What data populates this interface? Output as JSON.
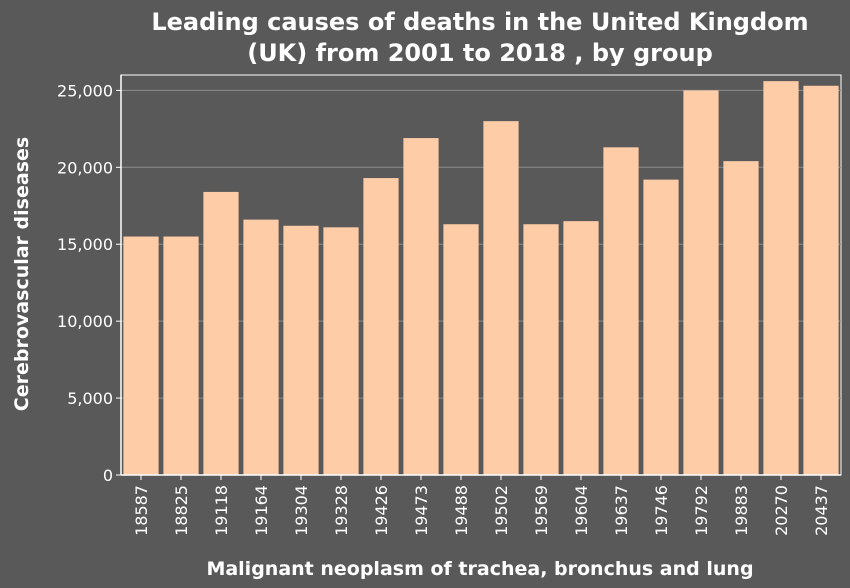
{
  "colors": {
    "background": "#595959",
    "plot_background": "#595959",
    "bar": "#ffcca8",
    "gridline": "#8c8c8c",
    "text": "#ffffff"
  },
  "chart_data": {
    "type": "bar",
    "title_lines": [
      "Leading causes of deaths in the United Kingdom",
      "(UK) from 2001 to 2018 , by group"
    ],
    "xlabel": "Malignant neoplasm of trachea, bronchus and lung",
    "ylabel": "Cerebrovascular diseases",
    "categories": [
      "18587",
      "18825",
      "19118",
      "19164",
      "19304",
      "19328",
      "19426",
      "19473",
      "19488",
      "19502",
      "19569",
      "19604",
      "19637",
      "19746",
      "19792",
      "19883",
      "20270",
      "20437"
    ],
    "values": [
      15500,
      15500,
      18400,
      16600,
      16200,
      16100,
      19300,
      21900,
      16300,
      23000,
      16300,
      16500,
      21300,
      19200,
      25000,
      20400,
      25600,
      25300
    ],
    "ylim": [
      0,
      26000
    ],
    "yticks": [
      0,
      5000,
      10000,
      15000,
      20000,
      25000
    ],
    "ytick_labels": [
      "0",
      "5,000",
      "10,000",
      "15,000",
      "20,000",
      "25,000"
    ],
    "grid": true,
    "legend": "none"
  }
}
